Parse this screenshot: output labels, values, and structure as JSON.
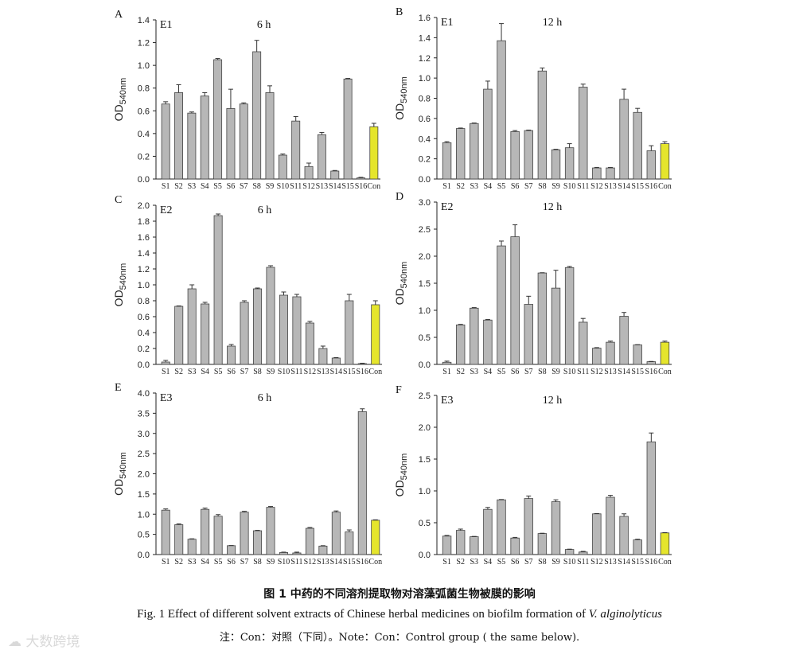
{
  "chart_data": [
    {
      "type": "bar",
      "panel_letter": "A",
      "extract": "E1",
      "time": "6 h",
      "ylabel": "OD540nm",
      "ylim": [
        0,
        1.4
      ],
      "yticks": [
        "0.0",
        "0.2",
        "0.4",
        "0.6",
        "0.8",
        "1.0",
        "1.2",
        "1.4"
      ],
      "categories": [
        "S1",
        "S2",
        "S3",
        "S4",
        "S5",
        "S6",
        "S7",
        "S8",
        "S9",
        "S10",
        "S11",
        "S12",
        "S13",
        "S14",
        "S15",
        "S16",
        "Con"
      ],
      "values": [
        0.66,
        0.76,
        0.58,
        0.73,
        1.05,
        0.62,
        0.66,
        1.12,
        0.76,
        0.21,
        0.51,
        0.11,
        0.39,
        0.07,
        0.88,
        0.01,
        0.46
      ],
      "errors": [
        0.02,
        0.07,
        0.01,
        0.03,
        0.01,
        0.17,
        0.01,
        0.1,
        0.06,
        0.01,
        0.04,
        0.03,
        0.02,
        0.005,
        0.005,
        0.005,
        0.03
      ]
    },
    {
      "type": "bar",
      "panel_letter": "B",
      "extract": "E1",
      "time": "12 h",
      "ylabel": "OD540nm",
      "ylim": [
        0,
        1.6
      ],
      "yticks": [
        "0.0",
        "0.2",
        "0.4",
        "0.6",
        "0.8",
        "1.0",
        "1.2",
        "1.4",
        "1.6"
      ],
      "categories": [
        "S1",
        "S2",
        "S3",
        "S4",
        "S5",
        "S6",
        "S7",
        "S8",
        "S9",
        "S10",
        "S11",
        "S12",
        "S13",
        "S14",
        "S15",
        "S16",
        "Con"
      ],
      "values": [
        0.36,
        0.5,
        0.55,
        0.89,
        1.37,
        0.47,
        0.48,
        1.07,
        0.29,
        0.31,
        0.91,
        0.11,
        0.11,
        0.79,
        0.66,
        0.28,
        0.35
      ],
      "errors": [
        0.01,
        0.005,
        0.005,
        0.08,
        0.17,
        0.01,
        0.005,
        0.03,
        0.005,
        0.04,
        0.03,
        0.005,
        0.005,
        0.1,
        0.04,
        0.05,
        0.02
      ]
    },
    {
      "type": "bar",
      "panel_letter": "C",
      "extract": "E2",
      "time": "6 h",
      "ylabel": "OD540nm",
      "ylim": [
        0,
        2.0
      ],
      "yticks": [
        "0.0",
        "0.2",
        "0.4",
        "0.6",
        "0.8",
        "1.0",
        "1.2",
        "1.4",
        "1.6",
        "1.8",
        "2.0"
      ],
      "categories": [
        "S1",
        "S2",
        "S3",
        "S4",
        "S5",
        "S6",
        "S7",
        "S8",
        "S9",
        "S10",
        "S11",
        "S12",
        "S13",
        "S14",
        "S15",
        "S16",
        "Con"
      ],
      "values": [
        0.03,
        0.73,
        0.95,
        0.76,
        1.87,
        0.23,
        0.78,
        0.95,
        1.22,
        0.87,
        0.85,
        0.52,
        0.2,
        0.08,
        0.8,
        0.01,
        0.75
      ],
      "errors": [
        0.02,
        0.005,
        0.05,
        0.02,
        0.02,
        0.02,
        0.02,
        0.01,
        0.02,
        0.04,
        0.03,
        0.02,
        0.03,
        0.005,
        0.08,
        0.005,
        0.05
      ]
    },
    {
      "type": "bar",
      "panel_letter": "D",
      "extract": "E2",
      "time": "12 h",
      "ylabel": "OD540nm",
      "ylim": [
        0,
        3.0
      ],
      "yticks": [
        "0.0",
        "0.5",
        "1.0",
        "1.5",
        "2.0",
        "2.5",
        "3.0"
      ],
      "categories": [
        "S1",
        "S2",
        "S3",
        "S4",
        "S5",
        "S6",
        "S7",
        "S8",
        "S9",
        "S10",
        "S11",
        "S12",
        "S13",
        "S14",
        "S15",
        "S16",
        "Con"
      ],
      "values": [
        0.04,
        0.73,
        1.04,
        0.82,
        2.19,
        2.36,
        1.11,
        1.69,
        1.41,
        1.79,
        0.78,
        0.3,
        0.41,
        0.89,
        0.36,
        0.05,
        0.41
      ],
      "errors": [
        0.02,
        0.01,
        0.01,
        0.01,
        0.09,
        0.22,
        0.15,
        0.005,
        0.33,
        0.02,
        0.07,
        0.01,
        0.02,
        0.07,
        0.005,
        0.005,
        0.02
      ]
    },
    {
      "type": "bar",
      "panel_letter": "E",
      "extract": "E3",
      "time": "6 h",
      "ylabel": "OD540nm",
      "ylim": [
        0,
        4.0
      ],
      "yticks": [
        "0.0",
        "0.5",
        "1.0",
        "1.5",
        "2.0",
        "2.5",
        "3.0",
        "3.5",
        "4.0"
      ],
      "categories": [
        "S1",
        "S2",
        "S3",
        "S4",
        "S5",
        "S6",
        "S7",
        "S8",
        "S9",
        "S10",
        "S11",
        "S12",
        "S13",
        "S14",
        "S15",
        "S16",
        "Con"
      ],
      "values": [
        1.1,
        0.74,
        0.38,
        1.12,
        0.95,
        0.22,
        1.05,
        0.59,
        1.17,
        0.05,
        0.04,
        0.65,
        0.21,
        1.05,
        0.56,
        3.54,
        0.85
      ],
      "errors": [
        0.03,
        0.02,
        0.01,
        0.03,
        0.04,
        0.005,
        0.02,
        0.01,
        0.02,
        0.01,
        0.02,
        0.02,
        0.01,
        0.03,
        0.05,
        0.07,
        0.01
      ]
    },
    {
      "type": "bar",
      "panel_letter": "F",
      "extract": "E3",
      "time": "12 h",
      "ylabel": "OD540nm",
      "ylim": [
        0,
        2.5
      ],
      "yticks": [
        "0.0",
        "0.5",
        "1.0",
        "1.5",
        "2.0",
        "2.5"
      ],
      "categories": [
        "S1",
        "S2",
        "S3",
        "S4",
        "S5",
        "S6",
        "S7",
        "S8",
        "S9",
        "S10",
        "S11",
        "S12",
        "S13",
        "S14",
        "S15",
        "S16",
        "Con"
      ],
      "values": [
        0.29,
        0.38,
        0.28,
        0.71,
        0.86,
        0.26,
        0.88,
        0.33,
        0.83,
        0.08,
        0.04,
        0.64,
        0.9,
        0.6,
        0.23,
        1.77,
        0.34
      ],
      "errors": [
        0.01,
        0.02,
        0.005,
        0.03,
        0.005,
        0.01,
        0.04,
        0.005,
        0.03,
        0.005,
        0.01,
        0.005,
        0.03,
        0.04,
        0.01,
        0.14,
        0.005
      ]
    }
  ],
  "colors": {
    "bar": "#b7b7b7",
    "control_bar": "#e5e52c",
    "axis": "#222222"
  },
  "caption": {
    "chinese": "图 1   中药的不同溶剂提取物对溶藻弧菌生物被膜的影响",
    "english_prefix": "Fig. 1    Effect of different solvent extracts of Chinese herbal medicines on biofilm formation of ",
    "english_species": "V. alginolyticus",
    "note": "注：Con：对照（下同）。Note：Con：Control group ( the same below)."
  },
  "watermark": "大数跨境"
}
